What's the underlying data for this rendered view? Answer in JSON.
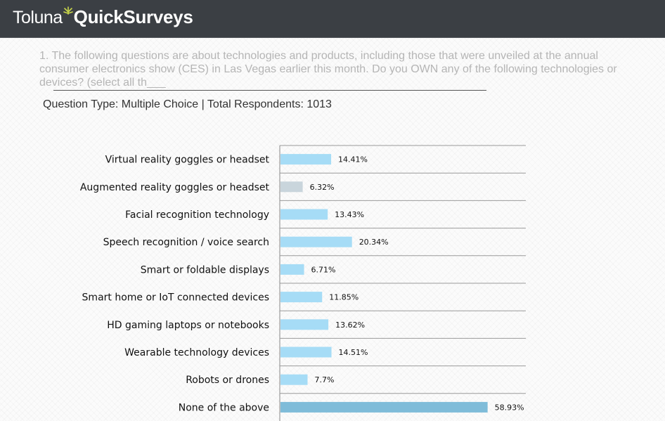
{
  "header": {
    "logo_part1": "Toluna",
    "logo_part2": "QuickSurveys"
  },
  "question": {
    "text": "1. The following questions are about technologies and products, including those that were unveiled at the annual consumer electronics show (CES) in Las Vegas earlier this month. Do you OWN any of the following technologies or devices? (select all th___",
    "meta": "Question Type: Multiple Choice | Total Respondents: 1013"
  },
  "colors": {
    "header_bg": "#3b3f44",
    "bar_default": "#a6dcf6",
    "bar_alt": "#c9d5dc",
    "bar_highlight": "#7fbcd9",
    "leaf": "#c9d64a"
  },
  "chart_data": {
    "type": "bar",
    "orientation": "horizontal",
    "categories": [
      "Virtual reality goggles or headset",
      "Augmented reality goggles or headset",
      "Facial recognition technology",
      "Speech recognition / voice search",
      "Smart or foldable displays",
      "Smart home or IoT connected devices",
      "HD gaming laptops or notebooks",
      "Wearable technology devices",
      "Robots or drones",
      "None of the above"
    ],
    "values": [
      14.41,
      6.32,
      13.43,
      20.34,
      6.71,
      11.85,
      13.62,
      14.51,
      7.7,
      58.93
    ],
    "value_labels": [
      "14.41%",
      "6.32%",
      "13.43%",
      "20.34%",
      "6.71%",
      "11.85%",
      "13.62%",
      "14.51%",
      "7.7%",
      "58.93%"
    ],
    "bar_colors": [
      "#a6dcf6",
      "#c9d5dc",
      "#a6dcf6",
      "#a6dcf6",
      "#a6dcf6",
      "#a6dcf6",
      "#a6dcf6",
      "#a6dcf6",
      "#a6dcf6",
      "#7fbcd9"
    ],
    "unit": "%",
    "xlim": [
      0,
      70
    ],
    "grid": "horizontal separators"
  }
}
